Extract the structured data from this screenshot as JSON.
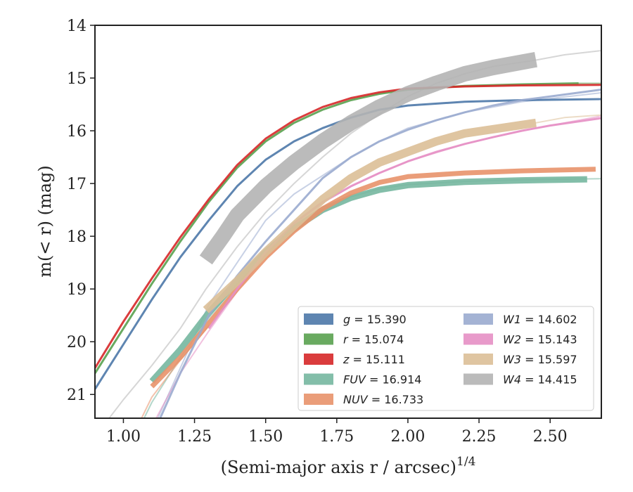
{
  "chart_data": {
    "type": "line",
    "xlabel": "(Semi-major axis r / arcsec)",
    "xlabel_power": "1/4",
    "ylabel": "m(< r) (mag)",
    "xlim": [
      0.9,
      2.68
    ],
    "ylim": [
      21.45,
      14.0
    ],
    "y_inverted": true,
    "x_ticks": [
      1.0,
      1.25,
      1.5,
      1.75,
      2.0,
      2.25,
      2.5
    ],
    "x_tick_labels": [
      "1.00",
      "1.25",
      "1.50",
      "1.75",
      "2.00",
      "2.25",
      "2.50"
    ],
    "y_ticks": [
      14,
      15,
      16,
      17,
      18,
      19,
      20,
      21
    ],
    "y_tick_labels": [
      "14",
      "15",
      "16",
      "17",
      "18",
      "19",
      "20",
      "21"
    ],
    "legend_position": "lower-right",
    "legend_columns": 2,
    "series": [
      {
        "name": "g = 15.390",
        "prefix": "g",
        "value": "15.390",
        "color": "#4c78a8",
        "band_width": 3,
        "measured": [
          [
            0.9,
            20.9
          ],
          [
            1.0,
            20.05
          ],
          [
            1.1,
            19.2
          ],
          [
            1.2,
            18.4
          ],
          [
            1.3,
            17.7
          ],
          [
            1.4,
            17.05
          ],
          [
            1.5,
            16.55
          ],
          [
            1.6,
            16.2
          ],
          [
            1.7,
            15.95
          ],
          [
            1.8,
            15.75
          ],
          [
            1.9,
            15.6
          ],
          [
            2.0,
            15.52
          ],
          [
            2.2,
            15.45
          ],
          [
            2.4,
            15.42
          ],
          [
            2.68,
            15.4
          ]
        ],
        "model": []
      },
      {
        "name": "r = 15.074",
        "prefix": "r",
        "value": "15.074",
        "color": "#59a14f",
        "band_width": 3,
        "measured": [
          [
            0.9,
            20.6
          ],
          [
            1.0,
            19.75
          ],
          [
            1.1,
            18.9
          ],
          [
            1.2,
            18.1
          ],
          [
            1.3,
            17.35
          ],
          [
            1.4,
            16.7
          ],
          [
            1.5,
            16.2
          ],
          [
            1.6,
            15.85
          ],
          [
            1.7,
            15.6
          ],
          [
            1.8,
            15.42
          ],
          [
            1.9,
            15.3
          ],
          [
            2.0,
            15.22
          ],
          [
            2.2,
            15.15
          ],
          [
            2.4,
            15.12
          ],
          [
            2.6,
            15.1
          ]
        ],
        "model": [
          [
            2.6,
            15.1
          ],
          [
            2.68,
            15.1
          ]
        ]
      },
      {
        "name": "z = 15.111",
        "prefix": "z",
        "value": "15.111",
        "color": "#d62728",
        "band_width": 3,
        "measured": [
          [
            0.9,
            20.5
          ],
          [
            1.0,
            19.62
          ],
          [
            1.1,
            18.8
          ],
          [
            1.2,
            18.02
          ],
          [
            1.3,
            17.3
          ],
          [
            1.4,
            16.65
          ],
          [
            1.5,
            16.15
          ],
          [
            1.6,
            15.8
          ],
          [
            1.7,
            15.55
          ],
          [
            1.8,
            15.38
          ],
          [
            1.9,
            15.27
          ],
          [
            2.0,
            15.2
          ],
          [
            2.2,
            15.16
          ],
          [
            2.4,
            15.14
          ],
          [
            2.68,
            15.13
          ]
        ],
        "model": []
      },
      {
        "name": "FUV = 16.914",
        "prefix": "FUV",
        "value": "16.914",
        "color": "#76b7a0",
        "band_width": 9,
        "measured": [
          [
            1.1,
            20.75
          ],
          [
            1.2,
            20.15
          ],
          [
            1.3,
            19.45
          ],
          [
            1.4,
            18.85
          ],
          [
            1.5,
            18.3
          ],
          [
            1.6,
            17.85
          ],
          [
            1.7,
            17.5
          ],
          [
            1.8,
            17.27
          ],
          [
            1.9,
            17.12
          ],
          [
            2.0,
            17.03
          ],
          [
            2.2,
            16.97
          ],
          [
            2.4,
            16.94
          ],
          [
            2.63,
            16.92
          ]
        ],
        "model": [
          [
            1.0,
            22.2
          ],
          [
            1.05,
            21.7
          ],
          [
            1.1,
            21.15
          ],
          [
            1.2,
            20.3
          ],
          [
            1.3,
            19.55
          ],
          [
            1.4,
            18.9
          ],
          [
            1.5,
            18.35
          ],
          [
            1.6,
            17.88
          ],
          [
            1.7,
            17.5
          ],
          [
            1.8,
            17.25
          ],
          [
            1.9,
            17.1
          ],
          [
            2.0,
            17.02
          ],
          [
            2.2,
            16.96
          ],
          [
            2.4,
            16.93
          ],
          [
            2.68,
            16.91
          ]
        ]
      },
      {
        "name": "NUV = 16.733",
        "prefix": "NUV",
        "value": "16.733",
        "color": "#e8926a",
        "band_width": 7,
        "measured": [
          [
            1.1,
            20.85
          ],
          [
            1.2,
            20.3
          ],
          [
            1.3,
            19.65
          ],
          [
            1.4,
            19.0
          ],
          [
            1.5,
            18.4
          ],
          [
            1.6,
            17.9
          ],
          [
            1.7,
            17.48
          ],
          [
            1.8,
            17.18
          ],
          [
            1.9,
            16.98
          ],
          [
            2.0,
            16.87
          ],
          [
            2.2,
            16.8
          ],
          [
            2.4,
            16.76
          ],
          [
            2.66,
            16.73
          ]
        ],
        "model": [
          [
            1.05,
            21.6
          ],
          [
            1.1,
            21.05
          ],
          [
            1.2,
            20.35
          ],
          [
            1.3,
            19.7
          ]
        ]
      },
      {
        "name": "W1 = 14.602",
        "prefix": "W1",
        "value": "14.602",
        "color": "#9aabcf",
        "band_width": 3,
        "measured": [
          [
            1.1,
            21.8
          ],
          [
            1.2,
            20.6
          ],
          [
            1.3,
            19.5
          ],
          [
            1.4,
            18.75
          ],
          [
            1.5,
            18.1
          ],
          [
            1.6,
            17.5
          ],
          [
            1.7,
            16.9
          ],
          [
            1.8,
            16.5
          ],
          [
            1.9,
            16.2
          ],
          [
            2.0,
            15.98
          ],
          [
            2.1,
            15.8
          ],
          [
            2.2,
            15.65
          ],
          [
            2.3,
            15.52
          ],
          [
            2.4,
            15.42
          ],
          [
            2.5,
            15.35
          ],
          [
            2.68,
            15.22
          ]
        ],
        "model": [
          [
            1.1,
            21.7
          ],
          [
            1.2,
            20.5
          ],
          [
            1.3,
            19.3
          ],
          [
            1.4,
            18.5
          ],
          [
            1.5,
            17.7
          ],
          [
            1.6,
            17.2
          ],
          [
            1.7,
            16.85
          ],
          [
            1.8,
            16.5
          ],
          [
            1.9,
            16.2
          ],
          [
            2.0,
            15.95
          ],
          [
            2.2,
            15.65
          ],
          [
            2.4,
            15.45
          ],
          [
            2.68,
            15.28
          ]
        ]
      },
      {
        "name": "W2 = 15.143",
        "prefix": "W2",
        "value": "15.143",
        "color": "#e58fc4",
        "band_width": 3,
        "measured": [
          [
            1.3,
            19.75
          ],
          [
            1.4,
            19.0
          ],
          [
            1.5,
            18.3
          ],
          [
            1.6,
            17.75
          ],
          [
            1.7,
            17.35
          ],
          [
            1.8,
            17.05
          ],
          [
            1.9,
            16.8
          ],
          [
            2.0,
            16.58
          ],
          [
            2.1,
            16.4
          ],
          [
            2.2,
            16.25
          ],
          [
            2.3,
            16.12
          ],
          [
            2.4,
            16.0
          ],
          [
            2.5,
            15.9
          ],
          [
            2.68,
            15.76
          ]
        ],
        "model": [
          [
            1.1,
            21.6
          ],
          [
            1.2,
            20.6
          ],
          [
            1.3,
            19.8
          ],
          [
            1.4,
            19.05
          ],
          [
            1.5,
            18.35
          ],
          [
            1.6,
            17.78
          ],
          [
            1.7,
            17.37
          ],
          [
            1.8,
            17.06
          ],
          [
            1.9,
            16.8
          ],
          [
            2.0,
            16.58
          ],
          [
            2.2,
            16.25
          ],
          [
            2.4,
            16.0
          ],
          [
            2.68,
            15.72
          ]
        ]
      },
      {
        "name": "W3 = 15.597",
        "prefix": "W3",
        "value": "15.597",
        "color": "#dcbf97",
        "band_width": 12,
        "measured": [
          [
            1.29,
            19.4
          ],
          [
            1.4,
            18.85
          ],
          [
            1.5,
            18.3
          ],
          [
            1.6,
            17.8
          ],
          [
            1.7,
            17.3
          ],
          [
            1.8,
            16.9
          ],
          [
            1.9,
            16.6
          ],
          [
            2.0,
            16.4
          ],
          [
            2.1,
            16.2
          ],
          [
            2.2,
            16.05
          ],
          [
            2.3,
            15.97
          ],
          [
            2.45,
            15.85
          ]
        ],
        "model": [
          [
            2.45,
            15.85
          ],
          [
            2.55,
            15.75
          ],
          [
            2.68,
            15.7
          ]
        ]
      },
      {
        "name": "W4 = 14.415",
        "prefix": "W4",
        "value": "14.415",
        "color": "#b4b4b4",
        "band_width": 22,
        "measured": [
          [
            1.29,
            18.45
          ],
          [
            1.35,
            18.0
          ],
          [
            1.4,
            17.6
          ],
          [
            1.5,
            17.05
          ],
          [
            1.6,
            16.6
          ],
          [
            1.7,
            16.2
          ],
          [
            1.8,
            15.85
          ],
          [
            1.9,
            15.55
          ],
          [
            2.0,
            15.3
          ],
          [
            2.1,
            15.1
          ],
          [
            2.2,
            14.92
          ],
          [
            2.3,
            14.8
          ],
          [
            2.45,
            14.65
          ]
        ],
        "model": [
          [
            0.95,
            21.45
          ],
          [
            1.0,
            21.1
          ],
          [
            1.1,
            20.45
          ],
          [
            1.2,
            19.75
          ],
          [
            1.29,
            19.0
          ],
          [
            1.4,
            18.2
          ],
          [
            1.5,
            17.55
          ],
          [
            1.6,
            17.0
          ],
          [
            1.7,
            16.5
          ],
          [
            1.8,
            16.05
          ],
          [
            1.9,
            15.68
          ],
          [
            2.0,
            15.35
          ],
          [
            2.1,
            15.1
          ],
          [
            2.2,
            14.92
          ],
          [
            2.3,
            14.78
          ],
          [
            2.45,
            14.66
          ],
          [
            2.55,
            14.56
          ],
          [
            2.68,
            14.48
          ]
        ]
      }
    ]
  }
}
